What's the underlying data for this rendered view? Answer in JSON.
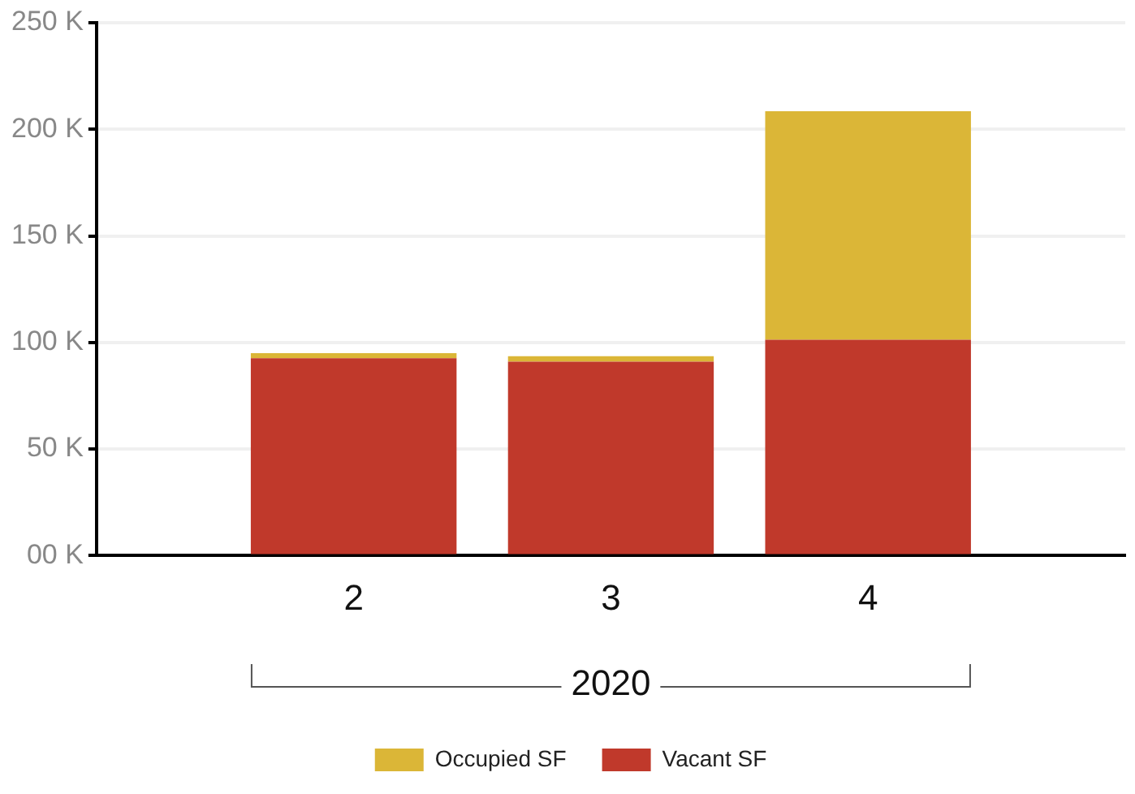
{
  "chart_data": {
    "type": "bar",
    "stacked": true,
    "xlabel": "2020",
    "categories": [
      null,
      "2",
      "3",
      "4",
      null
    ],
    "series": [
      {
        "name": "Vacant SF",
        "color": "#c0392b",
        "values": [
          null,
          92.6,
          91.0,
          101.3,
          null
        ]
      },
      {
        "name": "Occupied SF",
        "color": "#dbb637",
        "values": [
          null,
          2.4,
          2.6,
          107.2,
          null
        ]
      }
    ],
    "ylim": [
      0,
      250
    ],
    "yticks": [
      {
        "value": 0,
        "label": "00 K"
      },
      {
        "value": 50,
        "label": "50 K"
      },
      {
        "value": 100,
        "label": "100 K"
      },
      {
        "value": 150,
        "label": "150 K"
      },
      {
        "value": 200,
        "label": "200 K"
      },
      {
        "value": 250,
        "label": "250 K"
      }
    ],
    "grid": "y",
    "legend": "bottom"
  }
}
